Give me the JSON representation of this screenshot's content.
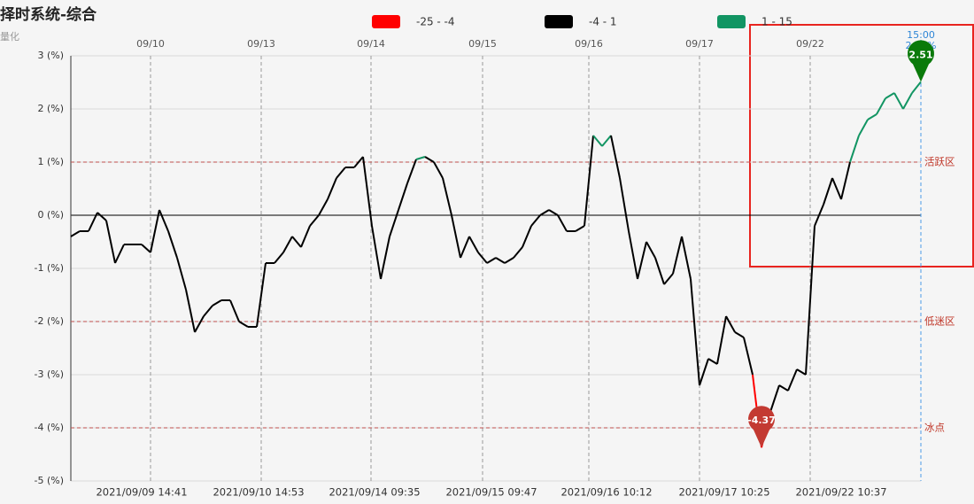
{
  "chart_data": {
    "type": "line",
    "title": "择时系统-综合",
    "subtitle": "量化",
    "legend": [
      {
        "label": "-25 - -4",
        "min": -25,
        "max": -4,
        "color": "#ff0000"
      },
      {
        "label": "-4 - 1",
        "min": -4,
        "max": 1,
        "color": "#000000"
      },
      {
        "label": "1 - 15",
        "min": 1,
        "max": 15,
        "color": "#129563"
      }
    ],
    "values": [
      -0.4,
      -0.3,
      -0.3,
      0.05,
      -0.1,
      -0.9,
      -0.55,
      -0.55,
      -0.55,
      -0.7,
      0.1,
      -0.3,
      -0.8,
      -1.4,
      -2.2,
      -1.9,
      -1.7,
      -1.6,
      -1.6,
      -2.0,
      -2.1,
      -2.1,
      -0.9,
      -0.9,
      -0.7,
      -0.4,
      -0.6,
      -0.2,
      0.0,
      0.3,
      0.7,
      0.9,
      0.9,
      1.1,
      -0.2,
      -1.2,
      -0.4,
      0.1,
      0.6,
      1.05,
      1.1,
      1.0,
      0.7,
      0.0,
      -0.8,
      -0.4,
      -0.7,
      -0.9,
      -0.8,
      -0.9,
      -0.8,
      -0.6,
      -0.2,
      0.0,
      0.1,
      0.0,
      -0.3,
      -0.3,
      -0.2,
      1.5,
      1.3,
      1.5,
      0.7,
      -0.3,
      -1.2,
      -0.5,
      -0.8,
      -1.3,
      -1.1,
      -0.4,
      -1.2,
      -3.2,
      -2.7,
      -2.8,
      -1.9,
      -2.2,
      -2.3,
      -3.0,
      -4.37,
      -3.7,
      -3.2,
      -3.3,
      -2.9,
      -3.0,
      -0.2,
      0.2,
      0.7,
      0.3,
      1.0,
      1.5,
      1.8,
      1.9,
      2.2,
      2.3,
      2.0,
      2.3,
      2.51
    ],
    "max_label": "2.51",
    "min_label": "-4.37",
    "xlim": [
      0,
      96
    ],
    "ylim": [
      -5,
      3
    ],
    "yticks": [
      {
        "value": 3,
        "label": "3 (%)"
      },
      {
        "value": 2,
        "label": "2 (%)"
      },
      {
        "value": 1,
        "label": "1 (%)"
      },
      {
        "value": 0,
        "label": "0 (%)"
      },
      {
        "value": -1,
        "label": "-1 (%)"
      },
      {
        "value": -2,
        "label": "-2 (%)"
      },
      {
        "value": -3,
        "label": "-3 (%)"
      },
      {
        "value": -4,
        "label": "-4 (%)"
      },
      {
        "value": -5,
        "label": "-5 (%)"
      }
    ],
    "xticks": [
      {
        "value": 9,
        "label": "09/10"
      },
      {
        "value": 21.5,
        "label": "09/13"
      },
      {
        "value": 33.9,
        "label": "09/14"
      },
      {
        "value": 46.5,
        "label": "09/15"
      },
      {
        "value": 58.5,
        "label": "09/16"
      },
      {
        "value": 71,
        "label": "09/17"
      },
      {
        "value": 83.5,
        "label": "09/22"
      }
    ],
    "bottom_labels": [
      {
        "value": 8,
        "label": "2021/09/09 14:41"
      },
      {
        "value": 21.2,
        "label": "2021/09/10 14:53"
      },
      {
        "value": 34.3,
        "label": "2021/09/14 09:35"
      },
      {
        "value": 47.5,
        "label": "2021/09/15 09:47"
      },
      {
        "value": 60.5,
        "label": "2021/09/16 10:12"
      },
      {
        "value": 73.8,
        "label": "2021/09/17 10:25"
      },
      {
        "value": 87,
        "label": "2021/09/22 10:37"
      }
    ],
    "ref_lines": [
      {
        "value": 1,
        "label": "活跃区"
      },
      {
        "value": -2,
        "label": "低迷区"
      },
      {
        "value": -4,
        "label": "冰点"
      }
    ],
    "cursor_time": "15:00",
    "cursor_value_label": "2.51%",
    "grid": true
  }
}
